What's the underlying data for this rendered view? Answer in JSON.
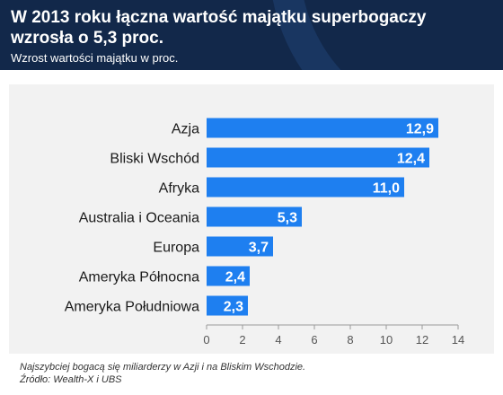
{
  "header": {
    "title": "W 2013 roku łączna wartość majątku superbogaczy wzrosła o 5,3 proc.",
    "subtitle": "Wzrost wartości majątku w proc."
  },
  "footer": {
    "note": "Najszybciej bogacą się miliarderzy w Azji i na Bliskim Wschodzie.",
    "source": "Źródło: Wealth-X i UBS"
  },
  "colors": {
    "header_bg": "#12284a",
    "bar": "#1e7ff0",
    "chart_bg": "#f2f2f2"
  },
  "chart_data": {
    "type": "bar",
    "orientation": "horizontal",
    "categories": [
      "Azja",
      "Bliski Wschód",
      "Afryka",
      "Australia i Oceania",
      "Europa",
      "Ameryka Północna",
      "Ameryka Południowa"
    ],
    "values": [
      12.9,
      12.4,
      11.0,
      5.3,
      3.7,
      2.4,
      2.3
    ],
    "value_labels": [
      "12,9",
      "12,4",
      "11,0",
      "5,3",
      "3,7",
      "2,4",
      "2,3"
    ],
    "xlim": [
      0,
      14
    ],
    "xticks": [
      0,
      2,
      4,
      6,
      8,
      10,
      12,
      14
    ],
    "grid": false,
    "legend": "none"
  }
}
